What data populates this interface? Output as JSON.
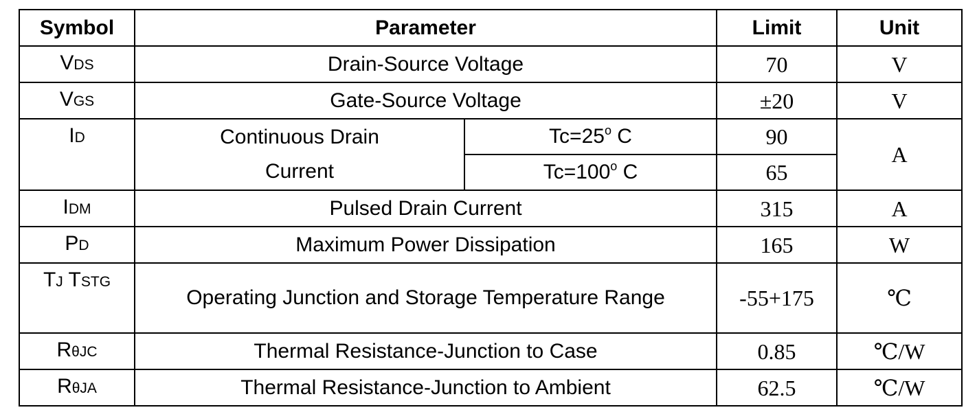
{
  "table": {
    "header": [
      "Symbol",
      "Parameter",
      "Limit",
      "Unit"
    ],
    "rows": [
      {
        "symbol": [
          {
            "main": "V",
            "sub": "DS"
          }
        ],
        "parameter": "Drain-Source Voltage",
        "limit": "70",
        "unit": "V"
      },
      {
        "symbol": [
          {
            "main": "V",
            "sub": "GS"
          }
        ],
        "parameter": "Gate-Source Voltage",
        "limit": "±20",
        "unit": "V"
      },
      {
        "symbol": [
          {
            "main": "I",
            "sub": "D"
          }
        ],
        "parameter": "Continuous Drain Current",
        "conditions": [
          {
            "text": "Tc=25",
            "sup": "o",
            "suffix": " C",
            "limit": "90"
          },
          {
            "text": "Tc=100",
            "sup": "o",
            "suffix": " C",
            "limit": "65"
          }
        ],
        "unit": "A"
      },
      {
        "symbol": [
          {
            "main": "I",
            "sub": "DM"
          }
        ],
        "parameter": "Pulsed Drain Current",
        "limit": "315",
        "unit": "A"
      },
      {
        "symbol": [
          {
            "main": "P",
            "sub": "D"
          }
        ],
        "parameter": "Maximum Power Dissipation",
        "limit": "165",
        "unit": "W"
      },
      {
        "symbol": [
          {
            "main": "T",
            "sub": "J"
          },
          {
            "main": " T",
            "sub": "STG"
          }
        ],
        "parameter": "Operating Junction and Storage Temperature Range",
        "limit": "-55+175",
        "unit": "℃"
      },
      {
        "symbol": [
          {
            "main": "R",
            "sub": "θJC"
          }
        ],
        "parameter": "Thermal Resistance-Junction to Case",
        "limit": "0.85",
        "unit": "℃/W"
      },
      {
        "symbol": [
          {
            "main": "R",
            "sub": "θJA"
          }
        ],
        "parameter": "Thermal Resistance-Junction to Ambient",
        "limit": "62.5",
        "unit": "℃/W"
      }
    ]
  }
}
